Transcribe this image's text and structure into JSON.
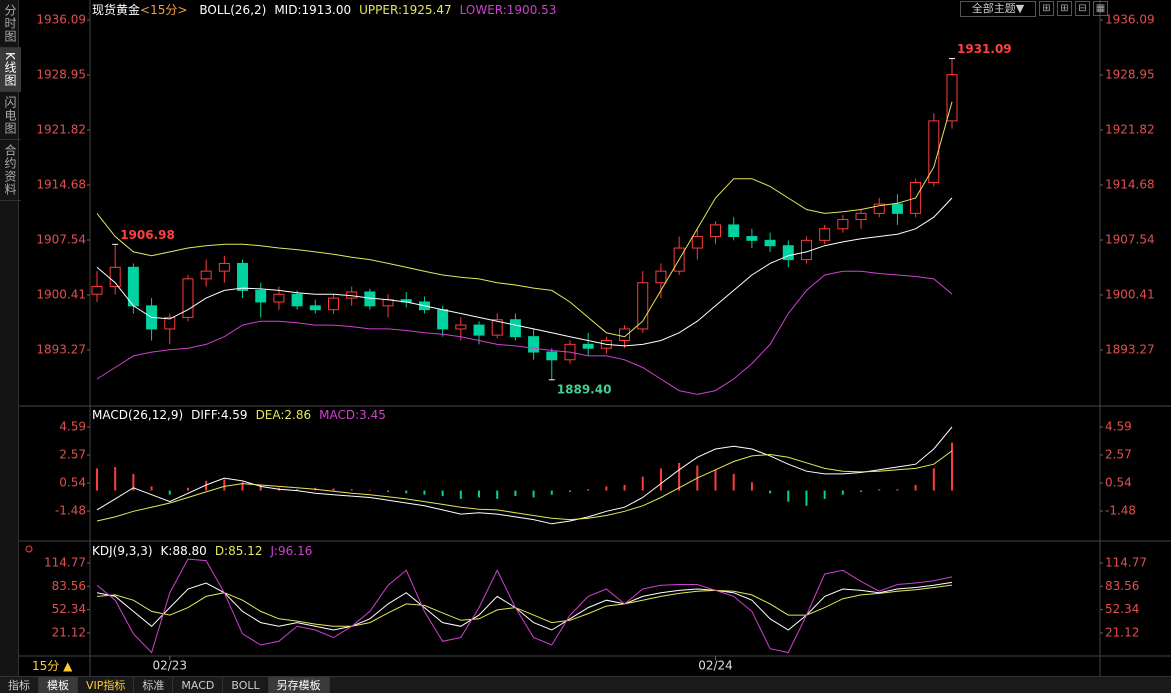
{
  "ui": {
    "side_tabs": [
      "分时图",
      "K线图",
      "闪电图",
      "合约资料"
    ],
    "period": "15分",
    "theme": "全部主题",
    "bottom_tabs": [
      "指标",
      "模板",
      "VIP指标",
      "标准",
      "MACD",
      "BOLL",
      "另存模板"
    ]
  },
  "chart_data": [
    {
      "type": "candlestick",
      "title": "现货黄金",
      "subtitle": "<15分>",
      "indicator": "BOLL(26,2)",
      "categories": [
        null,
        null,
        null,
        null,
        "02/23",
        null,
        null,
        null,
        null,
        null,
        null,
        null,
        null,
        null,
        null,
        null,
        null,
        null,
        null,
        null,
        null,
        null,
        null,
        null,
        null,
        null,
        null,
        null,
        null,
        null,
        null,
        null,
        null,
        null,
        "02/24",
        null,
        null,
        null,
        null,
        null,
        null,
        null,
        null,
        null,
        null,
        null,
        null,
        null
      ],
      "open": [
        1900.5,
        1901.5,
        1904.0,
        1899.0,
        1896.0,
        1897.5,
        1902.5,
        1903.5,
        1904.5,
        1901.0,
        1899.5,
        1900.5,
        1899.0,
        1898.5,
        1900.0,
        1900.8,
        1899.0,
        1899.8,
        1899.5,
        1898.5,
        1896.0,
        1896.5,
        1895.2,
        1897.2,
        1895.0,
        1893.0,
        1892.0,
        1894.0,
        1893.5,
        1894.5,
        1896.0,
        1902.0,
        1903.5,
        1906.5,
        1908.0,
        1909.5,
        1908.0,
        1907.5,
        1906.8,
        1905.0,
        1907.5,
        1909.0,
        1910.2,
        1911.0,
        1912.2,
        1911.0,
        1915.0,
        1923.0
      ],
      "high": [
        1903.5,
        1906.98,
        1904.5,
        1900.0,
        1898.0,
        1903.0,
        1905.0,
        1905.5,
        1905.0,
        1902.0,
        1901.5,
        1901.0,
        1899.8,
        1900.5,
        1901.5,
        1901.2,
        1900.5,
        1900.8,
        1900.2,
        1899.0,
        1897.5,
        1897.0,
        1898.0,
        1898.0,
        1896.0,
        1893.5,
        1894.5,
        1895.5,
        1895.0,
        1896.5,
        1903.5,
        1904.5,
        1908.0,
        1909.0,
        1910.0,
        1910.5,
        1909.0,
        1908.5,
        1907.5,
        1908.0,
        1909.5,
        1910.8,
        1911.5,
        1913.0,
        1913.5,
        1915.5,
        1924.0,
        1931.09
      ],
      "low": [
        1899.5,
        1900.5,
        1898.0,
        1894.5,
        1894.0,
        1897.0,
        1901.5,
        1902.0,
        1900.0,
        1897.5,
        1898.5,
        1898.5,
        1898.0,
        1898.0,
        1899.0,
        1898.5,
        1897.5,
        1898.8,
        1898.0,
        1895.0,
        1894.5,
        1894.0,
        1894.8,
        1894.5,
        1892.0,
        1889.4,
        1891.5,
        1892.5,
        1892.8,
        1893.5,
        1895.5,
        1900.0,
        1903.0,
        1905.0,
        1907.0,
        1907.5,
        1906.5,
        1906.0,
        1904.0,
        1904.5,
        1907.0,
        1908.5,
        1909.0,
        1910.5,
        1909.5,
        1910.5,
        1914.5,
        1922.0
      ],
      "close": [
        1901.5,
        1904.0,
        1899.0,
        1896.0,
        1897.5,
        1902.5,
        1903.5,
        1904.5,
        1901.0,
        1899.5,
        1900.5,
        1899.0,
        1898.5,
        1900.0,
        1900.8,
        1899.0,
        1899.8,
        1899.5,
        1898.5,
        1896.0,
        1896.5,
        1895.2,
        1897.2,
        1895.0,
        1893.0,
        1892.0,
        1894.0,
        1893.5,
        1894.5,
        1896.0,
        1902.0,
        1903.5,
        1906.5,
        1908.0,
        1909.5,
        1908.0,
        1907.5,
        1906.8,
        1905.0,
        1907.5,
        1909.0,
        1910.2,
        1911.0,
        1912.2,
        1911.0,
        1915.0,
        1923.0,
        1929.0
      ],
      "up_color": "#ff3b3b",
      "down_color": "#00d2a0",
      "series": [
        {
          "name": "MID:1913.00",
          "color": "#ffffff",
          "style": "line",
          "values": [
            1904,
            1902,
            1899,
            1897.5,
            1897.3,
            1898.5,
            1900,
            1901,
            1901.3,
            1901.2,
            1901,
            1900.7,
            1900.5,
            1900.5,
            1900.3,
            1900,
            1899.8,
            1899.5,
            1899,
            1898.5,
            1898,
            1897.5,
            1897,
            1896.5,
            1896,
            1895.5,
            1895,
            1894.5,
            1894,
            1893.8,
            1894,
            1894.5,
            1895.5,
            1897,
            1899,
            1901,
            1903,
            1904.5,
            1905.5,
            1906,
            1906.8,
            1907.3,
            1907.7,
            1908,
            1908.3,
            1909,
            1910.5,
            1913.0
          ]
        },
        {
          "name": "UPPER:1925.47",
          "color": "#e6e65a",
          "style": "line",
          "values": [
            1911,
            1908,
            1906,
            1905.5,
            1906,
            1906.5,
            1906.8,
            1907,
            1907,
            1906.8,
            1906.5,
            1906.3,
            1906,
            1905.7,
            1905.3,
            1905,
            1904.5,
            1904,
            1903.5,
            1903,
            1902.7,
            1902.5,
            1902,
            1901.7,
            1901.3,
            1901,
            1899.5,
            1897.5,
            1895.5,
            1895,
            1897,
            1901,
            1905,
            1909,
            1913,
            1915.5,
            1915.5,
            1914.5,
            1913,
            1911.5,
            1911,
            1911.2,
            1911.5,
            1912,
            1912.3,
            1913,
            1917,
            1925.47
          ]
        },
        {
          "name": "LOWER:1900.53",
          "color": "#d040d0",
          "style": "line",
          "values": [
            1889.5,
            1891,
            1892.5,
            1893,
            1893.3,
            1893.5,
            1894,
            1895,
            1896.5,
            1897,
            1897,
            1896.8,
            1896.5,
            1896.5,
            1896.3,
            1896,
            1896,
            1895.8,
            1895.5,
            1895.3,
            1895,
            1894.5,
            1894,
            1893.8,
            1893.5,
            1893.2,
            1893,
            1892.5,
            1892.5,
            1892,
            1891,
            1889.5,
            1888,
            1887.5,
            1888,
            1889.5,
            1891.5,
            1894,
            1898,
            1901,
            1903,
            1903.5,
            1903.5,
            1903.2,
            1903,
            1902.8,
            1902.5,
            1900.53
          ]
        }
      ],
      "annotations": [
        {
          "text": "1906.98"
        },
        {
          "text": "1889.40"
        },
        {
          "text": "1931.09"
        }
      ],
      "ylim": [
        1886.13,
        1938.17
      ],
      "yticks": [
        1936.09,
        1928.95,
        1921.82,
        1914.68,
        1907.54,
        1900.41,
        1893.27
      ]
    },
    {
      "type": "macd",
      "title": "MACD(26,12,9)",
      "series": [
        {
          "name": "DIFF:4.59",
          "color": "#ffffff",
          "style": "line",
          "values": [
            -1.4,
            -0.6,
            0.2,
            -0.3,
            -0.8,
            -0.2,
            0.4,
            0.9,
            0.7,
            0.3,
            0.1,
            0.0,
            -0.2,
            -0.3,
            -0.4,
            -0.5,
            -0.7,
            -0.9,
            -1.1,
            -1.4,
            -1.7,
            -1.6,
            -1.7,
            -1.9,
            -2.1,
            -2.4,
            -2.2,
            -1.9,
            -1.5,
            -1.2,
            -0.5,
            0.5,
            1.5,
            2.4,
            3.0,
            3.2,
            3.0,
            2.5,
            1.9,
            1.4,
            1.2,
            1.2,
            1.3,
            1.5,
            1.7,
            1.9,
            3.0,
            4.59
          ]
        },
        {
          "name": "DEA:2.86",
          "color": "#e6e65a",
          "style": "line",
          "values": [
            -2.2,
            -1.9,
            -1.5,
            -1.2,
            -0.9,
            -0.5,
            -0.1,
            0.3,
            0.5,
            0.4,
            0.3,
            0.2,
            0.1,
            -0.05,
            -0.2,
            -0.3,
            -0.45,
            -0.6,
            -0.8,
            -1.0,
            -1.2,
            -1.35,
            -1.4,
            -1.6,
            -1.8,
            -2.0,
            -2.1,
            -2.0,
            -1.8,
            -1.5,
            -1.1,
            -0.5,
            0.2,
            0.9,
            1.5,
            2.1,
            2.5,
            2.6,
            2.4,
            2.0,
            1.6,
            1.4,
            1.35,
            1.4,
            1.5,
            1.6,
            1.9,
            2.86
          ]
        },
        {
          "name": "MACD:3.45",
          "color": "#d040d0",
          "style": "bar",
          "values": [
            1.6,
            1.7,
            1.2,
            0.3,
            -0.3,
            0.2,
            0.7,
            0.8,
            0.6,
            0.4,
            0.2,
            0.1,
            0.2,
            0.15,
            0.1,
            0.05,
            -0.1,
            -0.2,
            -0.3,
            -0.4,
            -0.6,
            -0.5,
            -0.6,
            -0.4,
            -0.5,
            -0.3,
            -0.1,
            0.1,
            0.3,
            0.4,
            1.0,
            1.6,
            2.0,
            1.8,
            1.5,
            1.2,
            0.6,
            -0.2,
            -0.8,
            -1.1,
            -0.6,
            -0.3,
            -0.1,
            0.1,
            0.1,
            0.4,
            1.6,
            3.45
          ]
        }
      ],
      "up_color": "#ff3b3b",
      "down_color": "#00d2a0",
      "ylim": [
        -3.57,
        5.96
      ],
      "yticks": [
        4.59,
        2.57,
        0.54,
        -1.48
      ]
    },
    {
      "type": "line",
      "title": "KDJ(9,3,3)",
      "series": [
        {
          "name": "K:88.80",
          "color": "#ffffff",
          "style": "line",
          "values": [
            75,
            70,
            50,
            30,
            55,
            80,
            88,
            75,
            50,
            35,
            30,
            35,
            30,
            25,
            30,
            40,
            60,
            75,
            55,
            35,
            30,
            45,
            70,
            55,
            35,
            25,
            40,
            55,
            65,
            60,
            70,
            75,
            78,
            80,
            78,
            75,
            65,
            40,
            25,
            45,
            70,
            80,
            78,
            75,
            80,
            82,
            85,
            88.8
          ]
        },
        {
          "name": "D:85.12",
          "color": "#e6e65a",
          "style": "line",
          "values": [
            70,
            72,
            65,
            50,
            45,
            55,
            70,
            75,
            65,
            50,
            40,
            37,
            33,
            30,
            30,
            35,
            48,
            60,
            58,
            48,
            38,
            40,
            52,
            55,
            45,
            35,
            38,
            47,
            57,
            60,
            65,
            70,
            74,
            77,
            78,
            77,
            72,
            60,
            45,
            45,
            55,
            67,
            72,
            74,
            77,
            79,
            82,
            85.12
          ]
        },
        {
          "name": "J:96.16",
          "color": "#d040d0",
          "style": "line",
          "values": [
            85,
            65,
            20,
            -5,
            75,
            120,
            118,
            75,
            20,
            5,
            10,
            30,
            25,
            15,
            30,
            50,
            85,
            105,
            50,
            10,
            15,
            55,
            105,
            55,
            15,
            5,
            45,
            70,
            80,
            60,
            80,
            85,
            86,
            86,
            78,
            70,
            50,
            0,
            -5,
            45,
            100,
            105,
            90,
            77,
            86,
            88,
            91,
            96.16
          ]
        }
      ],
      "ylim": [
        -8.4,
        141.5
      ],
      "yticks": [
        114.77,
        83.56,
        52.34,
        21.12
      ]
    }
  ]
}
